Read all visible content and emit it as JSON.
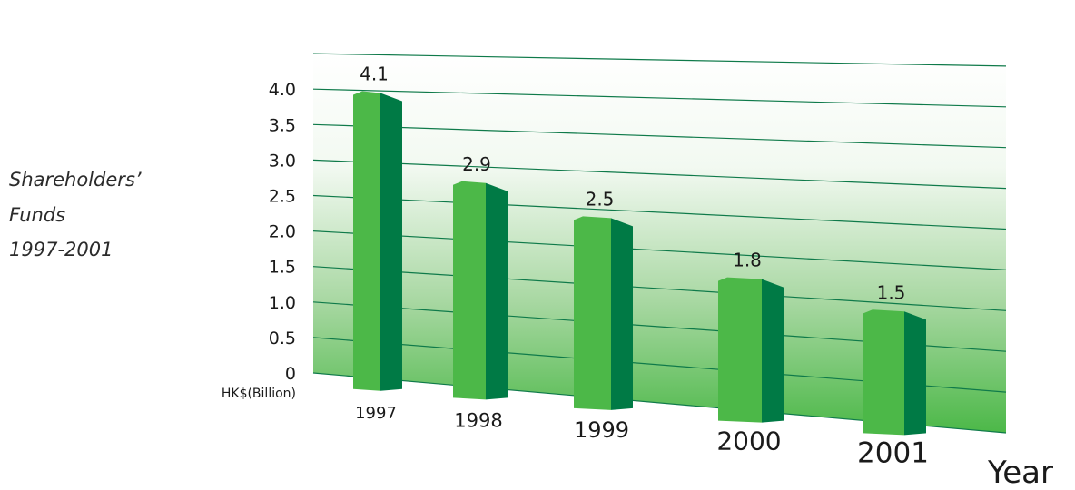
{
  "chart_data": {
    "type": "bar",
    "title_lines": [
      "Shareholders’",
      "Funds",
      "1997-2001"
    ],
    "y_unit": "HK$(Billion)",
    "xlabel": "Year",
    "categories": [
      "1997",
      "1998",
      "1999",
      "2000",
      "2001"
    ],
    "values": [
      4.1,
      2.9,
      2.5,
      1.8,
      1.5
    ],
    "value_labels": [
      "4.1",
      "2.9",
      "2.5",
      "1.8",
      "1.5"
    ],
    "y_ticks": [
      "0",
      "0.5",
      "1.0",
      "1.5",
      "2.0",
      "2.5",
      "3.0",
      "3.5",
      "4.0"
    ],
    "ylim": [
      0,
      4.5
    ],
    "grid": true,
    "colors": {
      "bar_front": "#4cb848",
      "bar_side": "#007a45",
      "grid_line": "#0f7a4a",
      "plane_top": "#ffffff",
      "plane_bottom": "#4cb848"
    }
  }
}
